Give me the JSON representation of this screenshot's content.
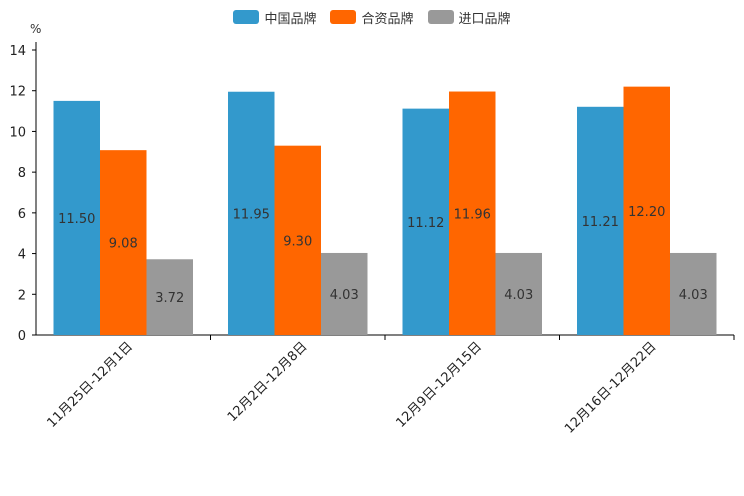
{
  "chart_data": {
    "type": "bar",
    "unit": "%",
    "categories": [
      "11月25日-12月1日",
      "12月2日-12月8日",
      "12月9日-12月15日",
      "12月16日-12月22日"
    ],
    "series": [
      {
        "name": "中国品牌",
        "color": "#3399cc",
        "values": [
          11.5,
          11.95,
          11.12,
          11.21
        ],
        "labels": [
          "11.50",
          "11.95",
          "11.12",
          "11.21"
        ]
      },
      {
        "name": "合资品牌",
        "color": "#ff6600",
        "values": [
          9.08,
          9.3,
          11.96,
          12.2
        ],
        "labels": [
          "9.08",
          "9.30",
          "11.96",
          "12.20"
        ]
      },
      {
        "name": "进口品牌",
        "color": "#999999",
        "values": [
          3.72,
          4.03,
          4.03,
          4.03
        ],
        "labels": [
          "3.72",
          "4.03",
          "4.03",
          "4.03"
        ]
      }
    ],
    "ylim": [
      0,
      14
    ],
    "yticks": [
      0,
      2,
      4,
      6,
      8,
      10,
      12,
      14
    ],
    "legend_position": "top-center"
  }
}
